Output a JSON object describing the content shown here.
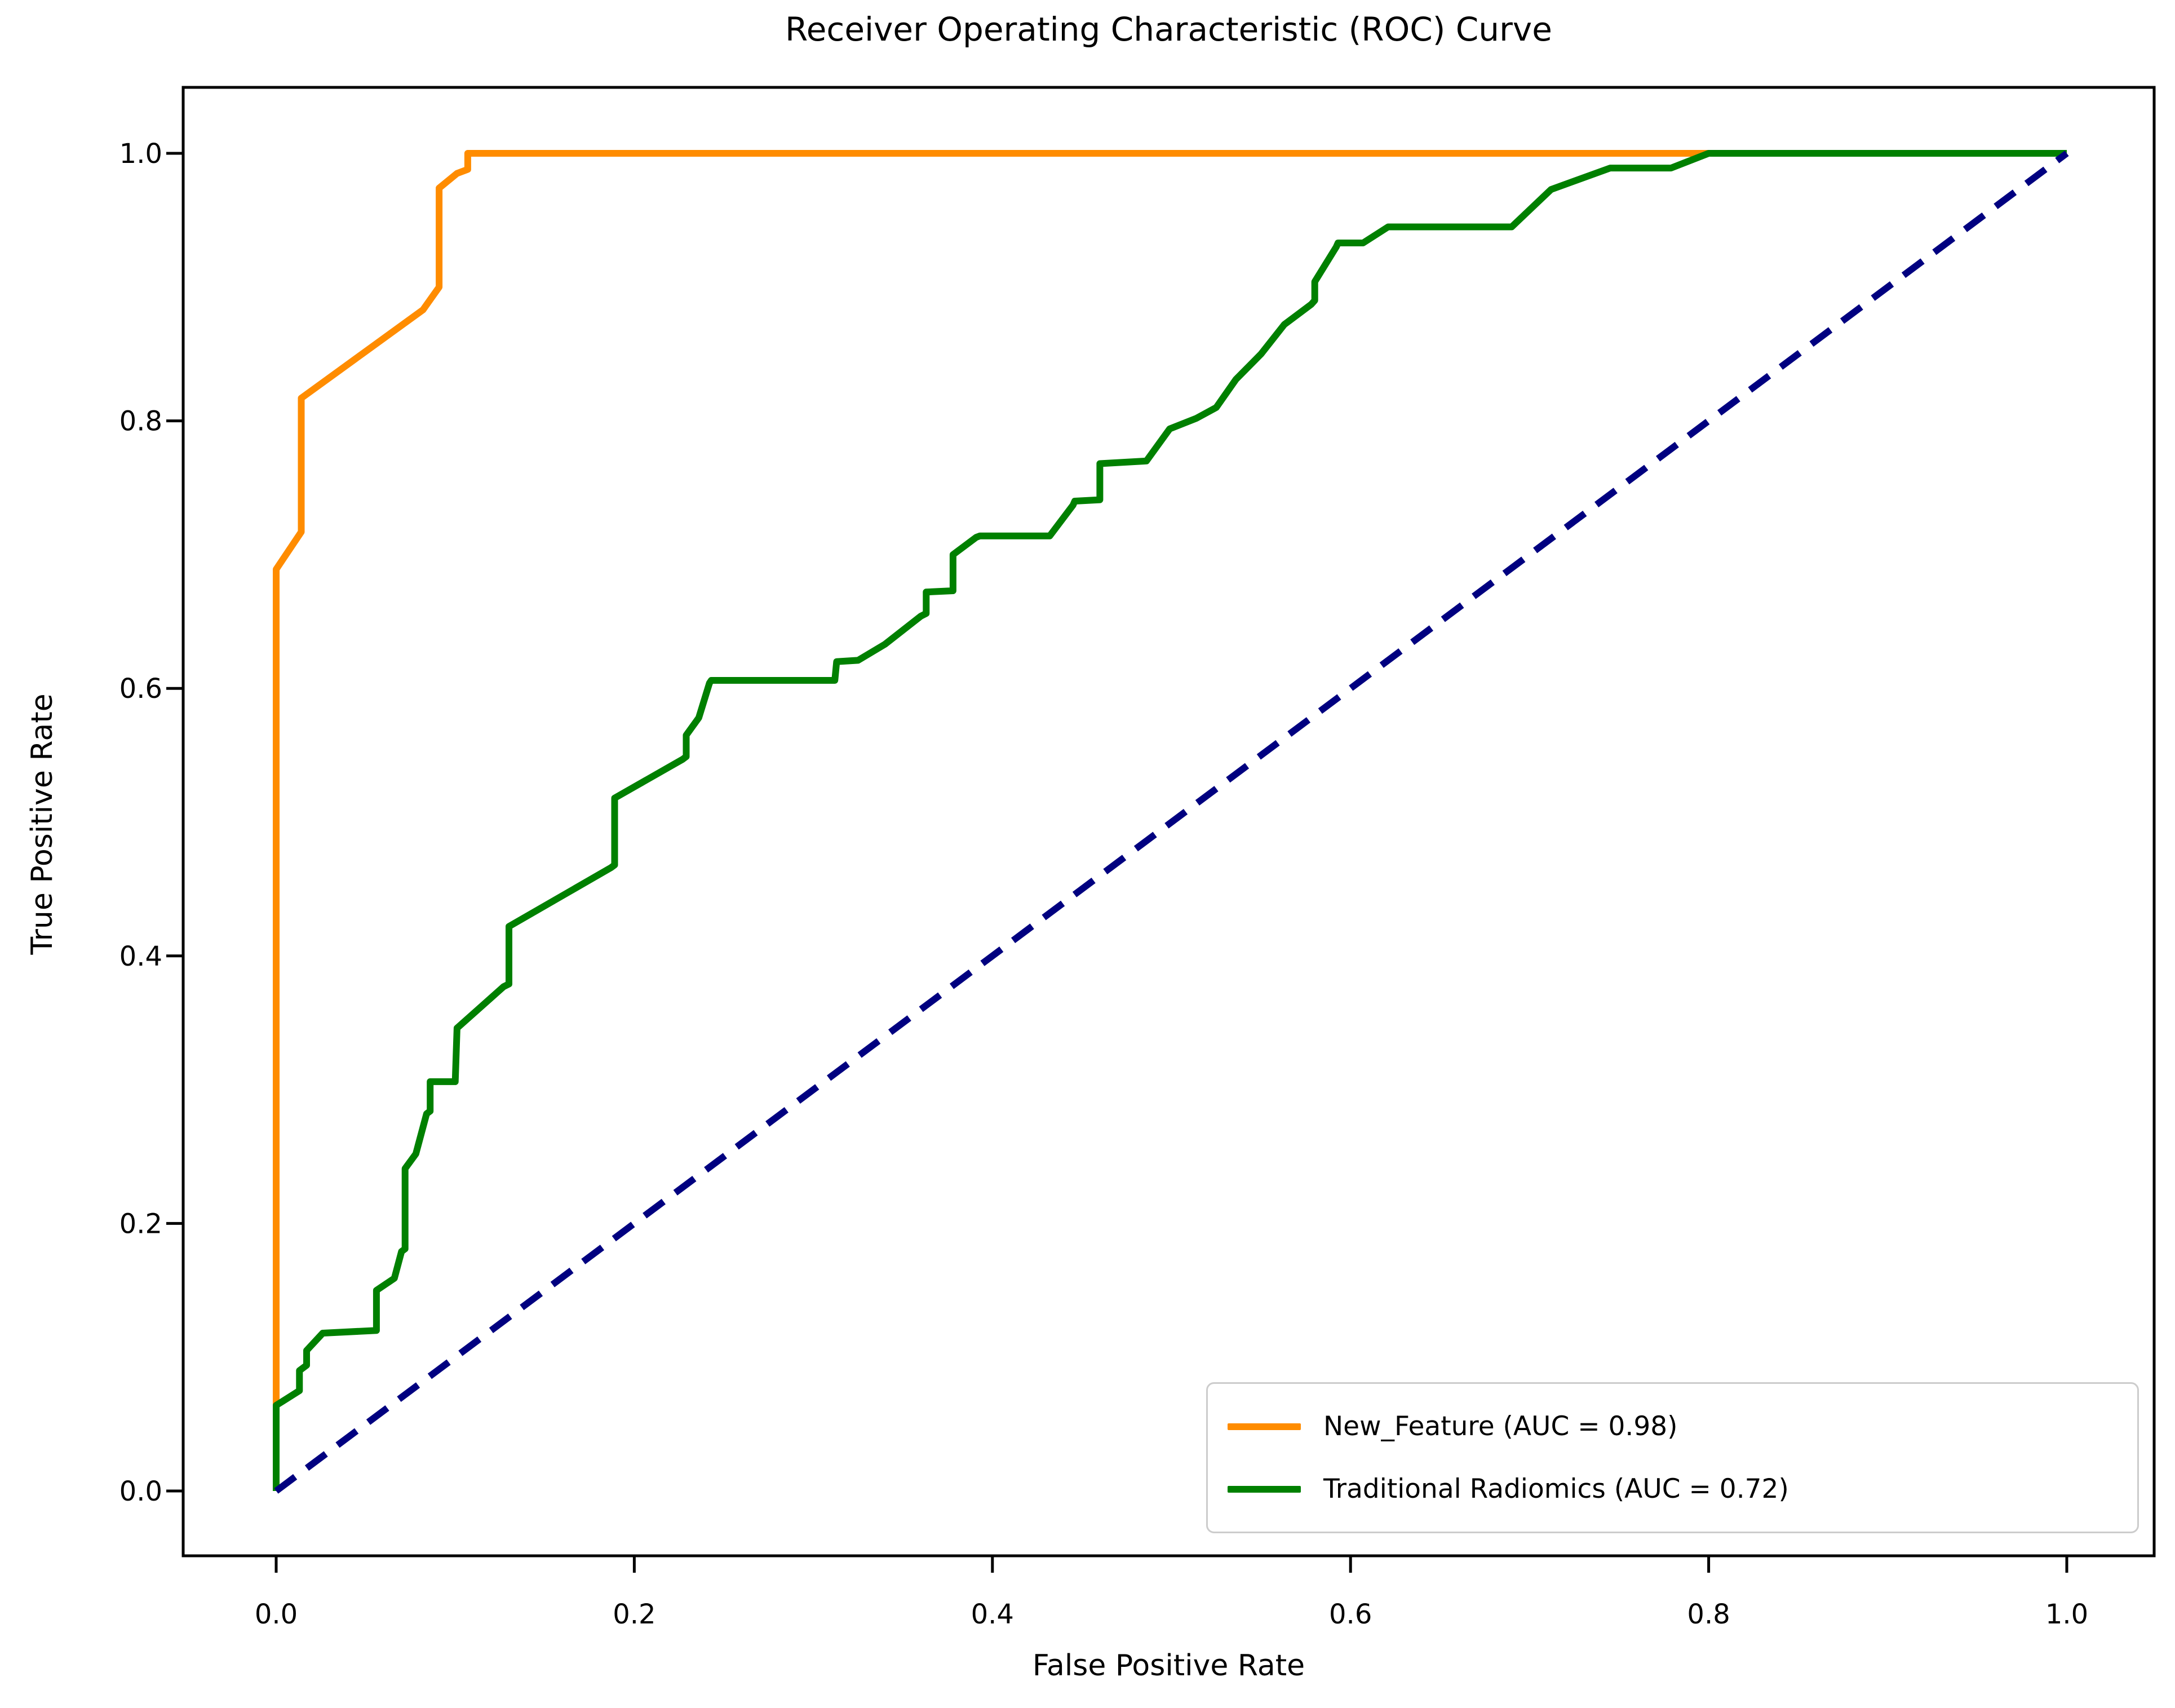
{
  "title": "Receiver Operating Characteristic (ROC) Curve",
  "chart_data": {
    "type": "line",
    "title": "Receiver Operating Characteristic (ROC) Curve",
    "xlabel": "False Positive Rate",
    "ylabel": "True Positive Rate",
    "xlim": [
      -0.05,
      1.05
    ],
    "ylim": [
      -0.05,
      1.05
    ],
    "x_ticks": [
      0.0,
      0.2,
      0.4,
      0.6,
      0.8,
      1.0
    ],
    "y_ticks": [
      0.0,
      0.2,
      0.4,
      0.6,
      0.8,
      1.0
    ],
    "grid": false,
    "legend_position": "lower right",
    "colors": {
      "new_feature": "#FF8C00",
      "traditional_radiomics": "#008000",
      "chance_line": "#000080",
      "axis": "#000000",
      "legend_border": "#cccccc"
    },
    "series": [
      {
        "name": "New_Feature (AUC = 0.98)",
        "auc": 0.98,
        "color": "#FF8C00",
        "style": "solid",
        "in_legend": true,
        "points": [
          [
            0,
            0
          ],
          [
            0,
            0.689
          ],
          [
            0.014,
            0.717
          ],
          [
            0.014,
            0.817
          ],
          [
            0.082,
            0.883
          ],
          [
            0.091,
            0.9
          ],
          [
            0.091,
            0.974
          ],
          [
            0.101,
            0.985
          ],
          [
            0.107,
            0.988
          ],
          [
            0.107,
            1
          ],
          [
            1,
            1
          ]
        ]
      },
      {
        "name": "Traditional Radiomics (AUC = 0.72)",
        "auc": 0.72,
        "color": "#008000",
        "style": "solid",
        "in_legend": true,
        "points": [
          [
            0,
            0
          ],
          [
            0,
            0.064
          ],
          [
            0.013,
            0.075
          ],
          [
            0.013,
            0.09
          ],
          [
            0.017,
            0.094
          ],
          [
            0.017,
            0.105
          ],
          [
            0.026,
            0.118
          ],
          [
            0.056,
            0.12
          ],
          [
            0.056,
            0.15
          ],
          [
            0.066,
            0.159
          ],
          [
            0.07,
            0.179
          ],
          [
            0.072,
            0.181
          ],
          [
            0.072,
            0.241
          ],
          [
            0.078,
            0.252
          ],
          [
            0.084,
            0.282
          ],
          [
            0.086,
            0.284
          ],
          [
            0.086,
            0.306
          ],
          [
            0.1,
            0.306
          ],
          [
            0.101,
            0.346
          ],
          [
            0.127,
            0.377
          ],
          [
            0.13,
            0.379
          ],
          [
            0.13,
            0.422
          ],
          [
            0.187,
            0.466
          ],
          [
            0.189,
            0.468
          ],
          [
            0.189,
            0.518
          ],
          [
            0.227,
            0.547
          ],
          [
            0.229,
            0.549
          ],
          [
            0.229,
            0.565
          ],
          [
            0.236,
            0.578
          ],
          [
            0.242,
            0.604
          ],
          [
            0.243,
            0.606
          ],
          [
            0.312,
            0.606
          ],
          [
            0.313,
            0.62
          ],
          [
            0.325,
            0.621
          ],
          [
            0.34,
            0.633
          ],
          [
            0.36,
            0.654
          ],
          [
            0.363,
            0.656
          ],
          [
            0.363,
            0.672
          ],
          [
            0.378,
            0.673
          ],
          [
            0.378,
            0.7
          ],
          [
            0.391,
            0.713
          ],
          [
            0.393,
            0.714
          ],
          [
            0.432,
            0.714
          ],
          [
            0.445,
            0.737
          ],
          [
            0.446,
            0.74
          ],
          [
            0.46,
            0.741
          ],
          [
            0.46,
            0.768
          ],
          [
            0.486,
            0.77
          ],
          [
            0.499,
            0.794
          ],
          [
            0.514,
            0.802
          ],
          [
            0.525,
            0.81
          ],
          [
            0.536,
            0.831
          ],
          [
            0.55,
            0.85
          ],
          [
            0.563,
            0.872
          ],
          [
            0.578,
            0.887
          ],
          [
            0.58,
            0.89
          ],
          [
            0.58,
            0.904
          ],
          [
            0.592,
            0.93
          ],
          [
            0.593,
            0.933
          ],
          [
            0.607,
            0.933
          ],
          [
            0.621,
            0.945
          ],
          [
            0.69,
            0.945
          ],
          [
            0.712,
            0.973
          ],
          [
            0.745,
            0.989
          ],
          [
            0.779,
            0.989
          ],
          [
            0.8,
            1
          ],
          [
            1,
            1
          ]
        ]
      },
      {
        "name": "chance-diagonal",
        "color": "#000080",
        "style": "dashed",
        "in_legend": false,
        "points": [
          [
            0,
            0
          ],
          [
            1,
            1
          ]
        ]
      }
    ]
  },
  "legend": {
    "items": [
      {
        "label": "New_Feature (AUC = 0.98)",
        "color": "#FF8C00"
      },
      {
        "label": "Traditional Radiomics (AUC = 0.72)",
        "color": "#008000"
      }
    ]
  }
}
